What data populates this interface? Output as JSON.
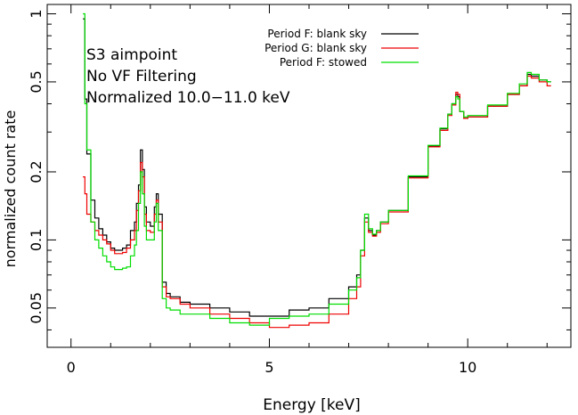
{
  "chart_data": {
    "type": "line",
    "title": "",
    "xlabel": "Energy [keV]",
    "ylabel": "normalized count rate",
    "xlim": [
      -0.6,
      12.6
    ],
    "ylim": [
      0.0335,
      1.1
    ],
    "yscale": "log",
    "grid": false,
    "legend_placement": "top-center",
    "annotations": [
      "S3 aimpoint",
      "No VF Filtering",
      "Normalized 10.0−11.0 keV"
    ],
    "x_ticks": [
      0,
      5,
      10
    ],
    "x_tick_labels": [
      "0",
      "5",
      "10"
    ],
    "y_ticks": [
      0.05,
      0.1,
      0.2,
      0.5,
      1
    ],
    "y_tick_labels": [
      "0.05",
      "0.1",
      "0.2",
      "0.5",
      "1"
    ],
    "series": [
      {
        "name": "Period F: blank sky",
        "color": "#000000",
        "x": [
          0.3,
          0.35,
          0.4,
          0.5,
          0.6,
          0.7,
          0.8,
          0.9,
          1.0,
          1.1,
          1.2,
          1.3,
          1.4,
          1.5,
          1.6,
          1.65,
          1.7,
          1.75,
          1.8,
          1.85,
          1.9,
          2.0,
          2.1,
          2.15,
          2.2,
          2.3,
          2.4,
          2.5,
          2.75,
          3.0,
          3.5,
          4.0,
          4.5,
          5.0,
          5.5,
          6.0,
          6.5,
          7.0,
          7.2,
          7.3,
          7.4,
          7.5,
          7.6,
          7.7,
          7.8,
          8.0,
          8.5,
          9.0,
          9.3,
          9.5,
          9.6,
          9.7,
          9.75,
          9.8,
          9.9,
          10.0,
          10.5,
          11.0,
          11.3,
          11.5,
          11.6,
          11.8,
          12.0
        ],
        "values": [
          0.95,
          0.42,
          0.24,
          0.15,
          0.125,
          0.112,
          0.105,
          0.098,
          0.092,
          0.09,
          0.09,
          0.092,
          0.095,
          0.11,
          0.12,
          0.145,
          0.175,
          0.25,
          0.205,
          0.14,
          0.12,
          0.115,
          0.14,
          0.16,
          0.13,
          0.065,
          0.058,
          0.056,
          0.053,
          0.052,
          0.05,
          0.048,
          0.046,
          0.046,
          0.049,
          0.05,
          0.055,
          0.062,
          0.07,
          0.09,
          0.125,
          0.11,
          0.105,
          0.11,
          0.12,
          0.135,
          0.19,
          0.26,
          0.31,
          0.36,
          0.4,
          0.44,
          0.43,
          0.37,
          0.345,
          0.35,
          0.39,
          0.44,
          0.48,
          0.54,
          0.53,
          0.51,
          0.5
        ]
      },
      {
        "name": "Period G: blank sky",
        "color": "#ee0000",
        "x": [
          0.3,
          0.35,
          0.4,
          0.5,
          0.6,
          0.7,
          0.8,
          0.9,
          1.0,
          1.1,
          1.2,
          1.3,
          1.4,
          1.5,
          1.6,
          1.65,
          1.7,
          1.75,
          1.8,
          1.85,
          1.9,
          2.0,
          2.1,
          2.15,
          2.2,
          2.3,
          2.4,
          2.5,
          2.75,
          3.0,
          3.5,
          4.0,
          4.5,
          5.0,
          5.5,
          6.0,
          6.5,
          7.0,
          7.2,
          7.3,
          7.4,
          7.5,
          7.6,
          7.7,
          7.8,
          8.0,
          8.5,
          9.0,
          9.3,
          9.5,
          9.6,
          9.7,
          9.75,
          9.8,
          9.9,
          10.0,
          10.5,
          11.0,
          11.3,
          11.5,
          11.6,
          11.8,
          12.0
        ],
        "values": [
          0.19,
          0.16,
          0.13,
          0.12,
          0.11,
          0.105,
          0.1,
          0.096,
          0.09,
          0.087,
          0.087,
          0.088,
          0.092,
          0.1,
          0.11,
          0.135,
          0.165,
          0.22,
          0.19,
          0.13,
          0.11,
          0.108,
          0.13,
          0.15,
          0.12,
          0.062,
          0.056,
          0.055,
          0.052,
          0.05,
          0.047,
          0.045,
          0.043,
          0.041,
          0.042,
          0.043,
          0.047,
          0.055,
          0.062,
          0.085,
          0.12,
          0.108,
          0.104,
          0.108,
          0.118,
          0.133,
          0.188,
          0.258,
          0.305,
          0.355,
          0.395,
          0.45,
          0.44,
          0.37,
          0.345,
          0.35,
          0.39,
          0.44,
          0.48,
          0.53,
          0.52,
          0.5,
          0.48
        ]
      },
      {
        "name": "Period F: stowed",
        "color": "#00dd00",
        "x": [
          0.3,
          0.35,
          0.4,
          0.5,
          0.6,
          0.7,
          0.8,
          0.9,
          1.0,
          1.1,
          1.2,
          1.3,
          1.4,
          1.5,
          1.6,
          1.65,
          1.7,
          1.75,
          1.8,
          1.85,
          1.9,
          2.0,
          2.1,
          2.15,
          2.2,
          2.3,
          2.4,
          2.5,
          2.75,
          3.0,
          3.5,
          4.0,
          4.5,
          5.0,
          5.5,
          6.0,
          6.5,
          7.0,
          7.2,
          7.3,
          7.4,
          7.5,
          7.6,
          7.7,
          7.8,
          8.0,
          8.5,
          9.0,
          9.3,
          9.5,
          9.6,
          9.7,
          9.75,
          9.8,
          9.9,
          10.0,
          10.5,
          11.0,
          11.3,
          11.5,
          11.6,
          11.8,
          12.0
        ],
        "values": [
          1.0,
          0.4,
          0.25,
          0.12,
          0.1,
          0.092,
          0.085,
          0.08,
          0.076,
          0.074,
          0.074,
          0.075,
          0.076,
          0.085,
          0.095,
          0.11,
          0.145,
          0.2,
          0.16,
          0.115,
          0.1,
          0.1,
          0.12,
          0.145,
          0.11,
          0.055,
          0.05,
          0.049,
          0.047,
          0.047,
          0.045,
          0.043,
          0.042,
          0.045,
          0.046,
          0.047,
          0.052,
          0.06,
          0.068,
          0.09,
          0.13,
          0.112,
          0.106,
          0.11,
          0.12,
          0.135,
          0.192,
          0.262,
          0.312,
          0.36,
          0.4,
          0.43,
          0.42,
          0.37,
          0.35,
          0.355,
          0.395,
          0.445,
          0.49,
          0.55,
          0.54,
          0.51,
          0.5
        ]
      }
    ]
  }
}
